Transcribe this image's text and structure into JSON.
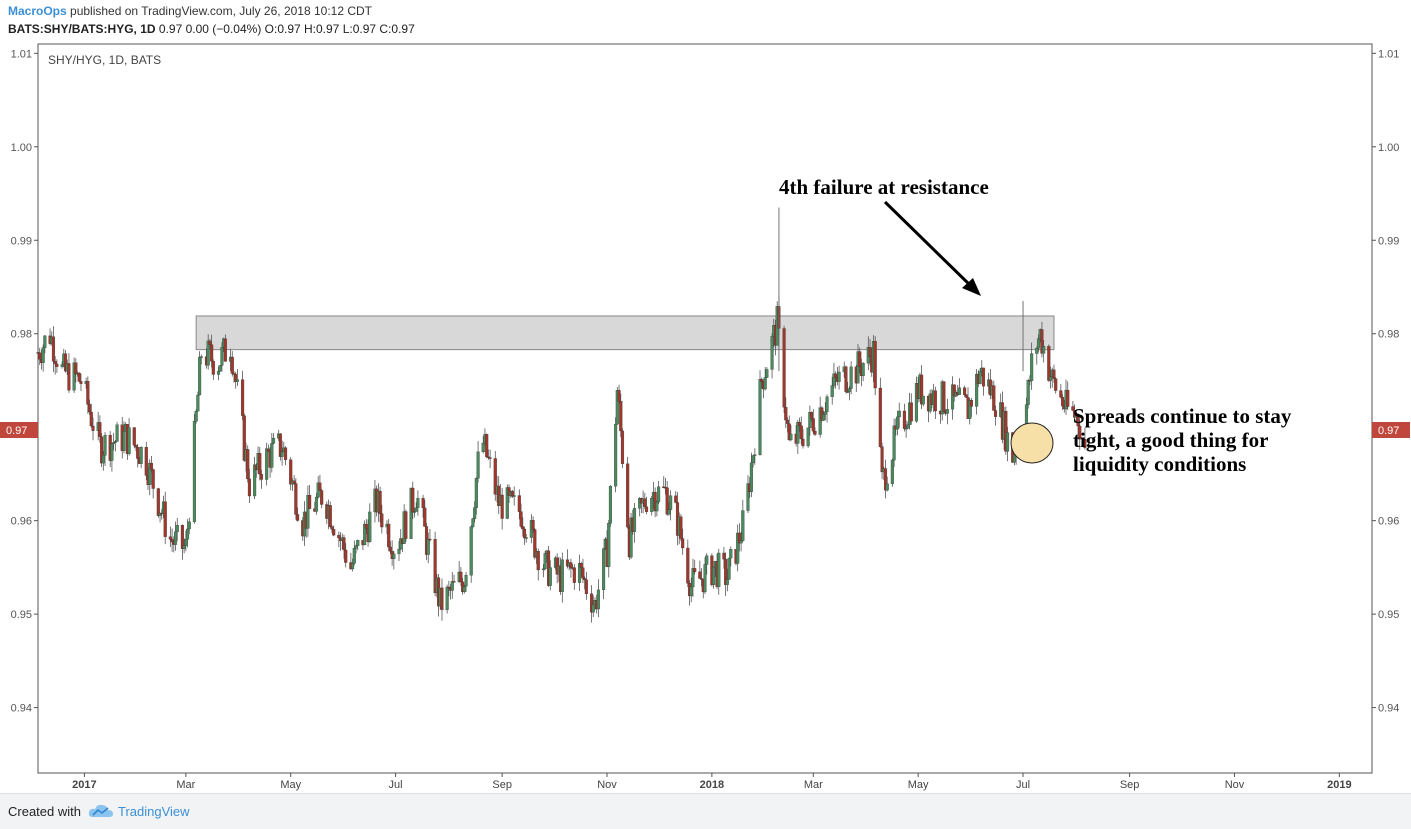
{
  "header": {
    "user": "MacroOps",
    "published": "published on TradingView.com, July 26, 2018 10:12 CDT",
    "symbol": "BATS:SHY/BATS:HYG, 1D",
    "quote": "0.97 0.00 (−0.04%) O:0.97 H:0.97 L:0.97 C:0.97"
  },
  "chart_label": "SHY/HYG, 1D, BATS",
  "footer": {
    "created_with": "Created with",
    "brand": "TradingView",
    "logo_icon": "tradingview-cloud-icon"
  },
  "colors": {
    "up": "#4a8a5e",
    "down": "#a0372c",
    "price_tag": "#c0473b",
    "resistance_fill": "#d8d8d8",
    "highlight": "#f7dfa8",
    "brand": "#3b8fd6"
  },
  "chart_data": {
    "type": "candlestick",
    "title": "SHY/HYG, 1D, BATS",
    "last_price_label": "0.97",
    "ylim": [
      0.933,
      1.011
    ],
    "y_ticks": [
      0.94,
      0.95,
      0.96,
      0.97,
      0.98,
      0.99,
      1.0,
      1.01
    ],
    "y_tick_labels": [
      "0.94",
      "0.95",
      "0.96",
      "0.97",
      "0.98",
      "0.99",
      "1.00",
      "1.01"
    ],
    "x_ticks": [
      {
        "label": "2017",
        "date": "2017-01-01",
        "bold": true
      },
      {
        "label": "Mar",
        "date": "2017-03-01",
        "bold": false
      },
      {
        "label": "May",
        "date": "2017-05-01",
        "bold": false
      },
      {
        "label": "Jul",
        "date": "2017-07-01",
        "bold": false
      },
      {
        "label": "Sep",
        "date": "2017-09-01",
        "bold": false
      },
      {
        "label": "Nov",
        "date": "2017-11-01",
        "bold": false
      },
      {
        "label": "2018",
        "date": "2018-01-01",
        "bold": true
      },
      {
        "label": "Mar",
        "date": "2018-03-01",
        "bold": false
      },
      {
        "label": "May",
        "date": "2018-05-01",
        "bold": false
      },
      {
        "label": "Jul",
        "date": "2018-07-01",
        "bold": false
      },
      {
        "label": "Sep",
        "date": "2018-09-01",
        "bold": false
      },
      {
        "label": "Nov",
        "date": "2018-11-01",
        "bold": false
      },
      {
        "label": "2019",
        "date": "2019-01-01",
        "bold": true
      }
    ],
    "x_range": [
      "2016-12-05",
      "2019-01-20"
    ],
    "close_path": [
      [
        "2016-12-05",
        0.978
      ],
      [
        "2016-12-12",
        0.98
      ],
      [
        "2016-12-19",
        0.976
      ],
      [
        "2016-12-30",
        0.975
      ],
      [
        "2017-01-10",
        0.968
      ],
      [
        "2017-01-25",
        0.969
      ],
      [
        "2017-02-05",
        0.967
      ],
      [
        "2017-02-20",
        0.958
      ],
      [
        "2017-03-01",
        0.957
      ],
      [
        "2017-03-10",
        0.978
      ],
      [
        "2017-03-20",
        0.977
      ],
      [
        "2017-03-27",
        0.979
      ],
      [
        "2017-04-07",
        0.964
      ],
      [
        "2017-04-18",
        0.967
      ],
      [
        "2017-04-26",
        0.968
      ],
      [
        "2017-05-08",
        0.96
      ],
      [
        "2017-05-20",
        0.963
      ],
      [
        "2017-06-05",
        0.955
      ],
      [
        "2017-06-20",
        0.962
      ],
      [
        "2017-07-01",
        0.957
      ],
      [
        "2017-07-13",
        0.963
      ],
      [
        "2017-07-27",
        0.951
      ],
      [
        "2017-08-10",
        0.954
      ],
      [
        "2017-08-20",
        0.969
      ],
      [
        "2017-08-30",
        0.962
      ],
      [
        "2017-09-12",
        0.961
      ],
      [
        "2017-09-26",
        0.955
      ],
      [
        "2017-10-05",
        0.954
      ],
      [
        "2017-10-15",
        0.955
      ],
      [
        "2017-10-25",
        0.951
      ],
      [
        "2017-11-01",
        0.957
      ],
      [
        "2017-11-07",
        0.974
      ],
      [
        "2017-11-14",
        0.958
      ],
      [
        "2017-11-25",
        0.963
      ],
      [
        "2017-12-05",
        0.963
      ],
      [
        "2017-12-12",
        0.96
      ],
      [
        "2017-12-20",
        0.953
      ],
      [
        "2018-01-02",
        0.955
      ],
      [
        "2018-01-10",
        0.954
      ],
      [
        "2018-01-20",
        0.96
      ],
      [
        "2018-01-30",
        0.975
      ],
      [
        "2018-02-08",
        0.981
      ],
      [
        "2018-02-15",
        0.968
      ],
      [
        "2018-02-26",
        0.97
      ],
      [
        "2018-03-05",
        0.972
      ],
      [
        "2018-03-15",
        0.975
      ],
      [
        "2018-03-25",
        0.976
      ],
      [
        "2018-04-05",
        0.978
      ],
      [
        "2018-04-10",
        0.964
      ],
      [
        "2018-04-20",
        0.97
      ],
      [
        "2018-05-01",
        0.974
      ],
      [
        "2018-05-15",
        0.973
      ],
      [
        "2018-05-30",
        0.972
      ],
      [
        "2018-06-06",
        0.976
      ],
      [
        "2018-06-15",
        0.973
      ],
      [
        "2018-06-25",
        0.967
      ],
      [
        "2018-07-02",
        0.971
      ],
      [
        "2018-07-07",
        0.978
      ],
      [
        "2018-07-11",
        0.98
      ],
      [
        "2018-07-18",
        0.975
      ],
      [
        "2018-07-26",
        0.972
      ],
      [
        "2018-08-02",
        0.971
      ],
      [
        "2018-08-06",
        0.968
      ]
    ],
    "spikes": [
      {
        "date": "2018-02-09",
        "high": 0.9935
      },
      {
        "date": "2018-07-01",
        "high": 0.9835
      }
    ],
    "resistance_zone": {
      "from": "2017-03-07",
      "to": "2018-07-19",
      "low": 0.9783,
      "high": 0.9819
    },
    "annotations": [
      {
        "text": "4th failure at resistance"
      },
      {
        "text": "Spreads continue to stay"
      },
      {
        "text": "tight, a good thing for"
      },
      {
        "text": "liquidity conditions"
      }
    ]
  }
}
